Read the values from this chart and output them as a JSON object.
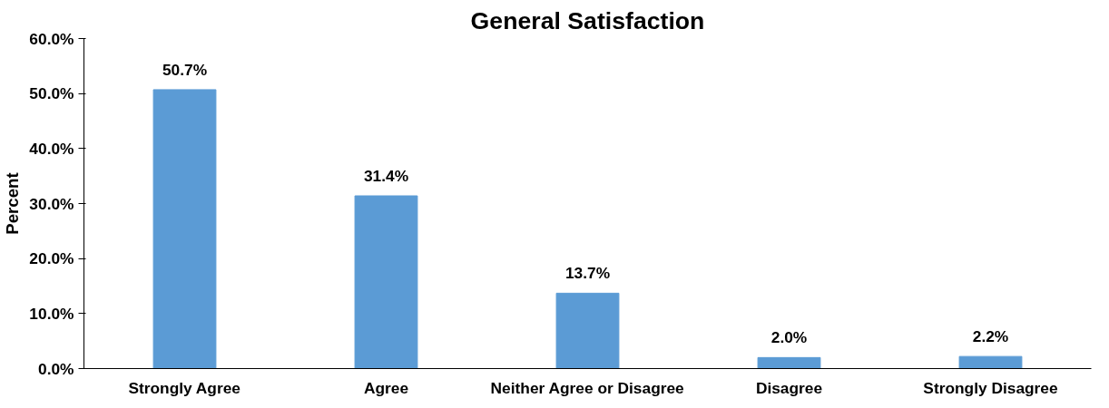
{
  "chart_data": {
    "type": "bar",
    "title": "General Satisfaction",
    "ylabel": "Percent",
    "categories": [
      "Strongly Agree",
      "Agree",
      "Neither Agree or Disagree",
      "Disagree",
      "Strongly Disagree"
    ],
    "values": [
      50.7,
      31.4,
      13.7,
      2.0,
      2.2
    ],
    "value_labels": [
      "50.7%",
      "31.4%",
      "13.7%",
      "2.0%",
      "2.2%"
    ],
    "color": "#5b9bd5",
    "ylim": [
      0,
      60
    ],
    "yticks": [
      {
        "value": 0,
        "label": "0.0%"
      },
      {
        "value": 10,
        "label": "10.0%"
      },
      {
        "value": 20,
        "label": "20.0%"
      },
      {
        "value": 30,
        "label": "30.0%"
      },
      {
        "value": 40,
        "label": "40.0%"
      },
      {
        "value": 50,
        "label": "50.0%"
      },
      {
        "value": 60,
        "label": "60.0%"
      }
    ],
    "grid": false
  }
}
